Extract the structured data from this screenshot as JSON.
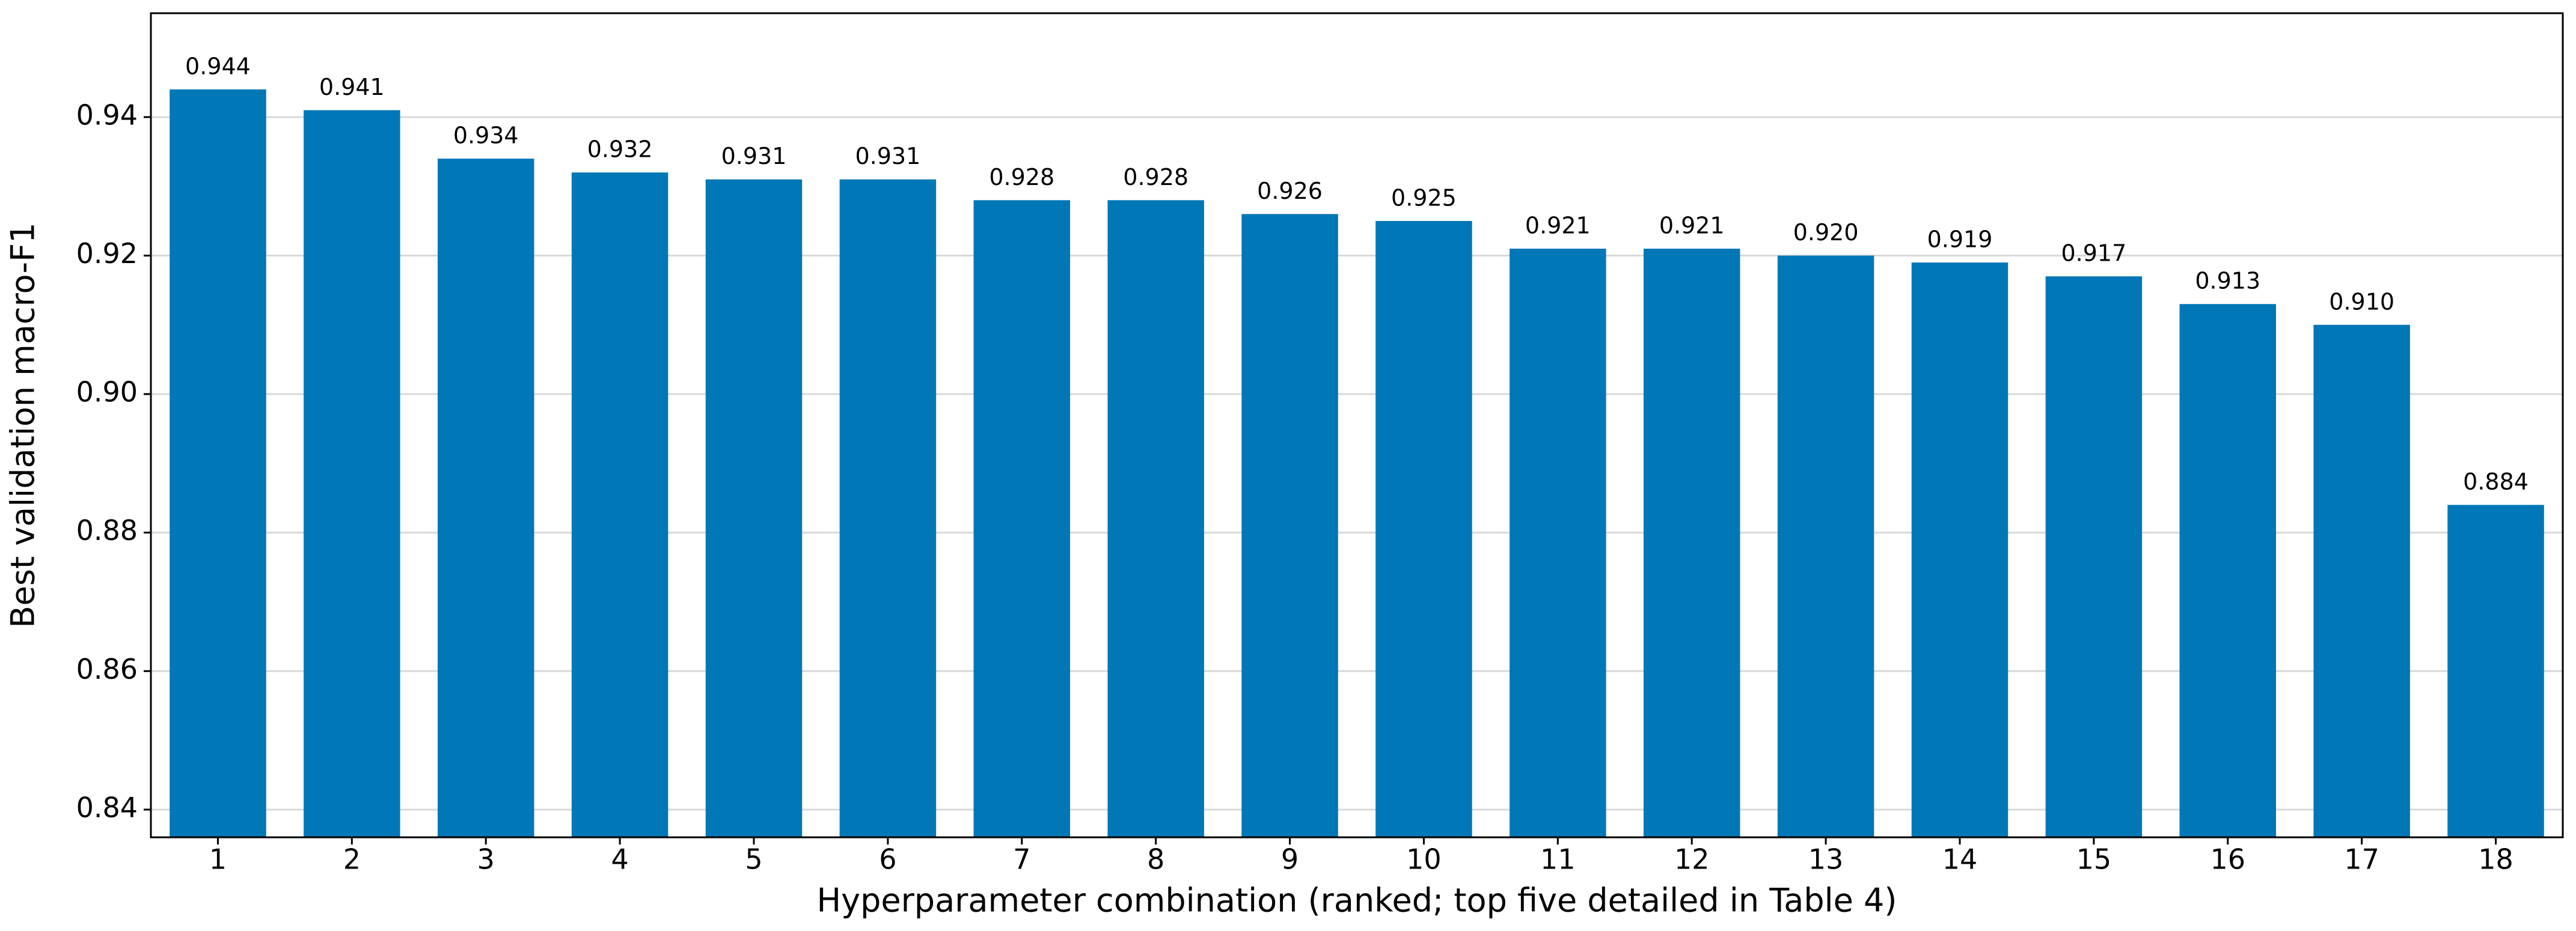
{
  "chart_data": {
    "type": "bar",
    "xlabel": "Hyperparameter combination (ranked; top five detailed in Table 4)",
    "ylabel": "Best validation macro-F1",
    "categories": [
      "1",
      "2",
      "3",
      "4",
      "5",
      "6",
      "7",
      "8",
      "9",
      "10",
      "11",
      "12",
      "13",
      "14",
      "15",
      "16",
      "17",
      "18"
    ],
    "values": [
      0.944,
      0.941,
      0.934,
      0.932,
      0.931,
      0.931,
      0.928,
      0.928,
      0.926,
      0.925,
      0.921,
      0.921,
      0.92,
      0.919,
      0.917,
      0.913,
      0.91,
      0.884
    ],
    "value_labels": [
      "0.944",
      "0.941",
      "0.934",
      "0.932",
      "0.931",
      "0.931",
      "0.928",
      "0.928",
      "0.926",
      "0.925",
      "0.921",
      "0.921",
      "0.920",
      "0.919",
      "0.917",
      "0.913",
      "0.910",
      "0.884"
    ],
    "color": "#0077b6",
    "ylim": [
      0.836,
      0.955
    ],
    "yticks": [
      0.84,
      0.86,
      0.88,
      {
        "value": 0.9,
        "label": "0.90"
      },
      0.92,
      0.94
    ],
    "grid": true
  }
}
